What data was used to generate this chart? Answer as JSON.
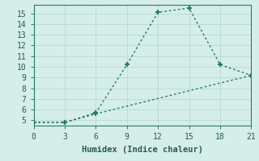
{
  "line1_x": [
    0,
    3,
    6,
    9,
    12,
    15,
    18,
    21
  ],
  "line1_y": [
    4.8,
    4.8,
    5.7,
    10.2,
    15.1,
    15.5,
    10.2,
    9.2
  ],
  "line2_x": [
    0,
    3,
    6,
    21
  ],
  "line2_y": [
    4.8,
    4.8,
    5.6,
    9.2
  ],
  "color": "#2a7a6a",
  "bg_color": "#d5eeea",
  "grid_color": "#b8ddd8",
  "xlabel": "Humidex (Indice chaleur)",
  "xlim": [
    0,
    21
  ],
  "ylim": [
    4.5,
    15.8
  ],
  "xticks": [
    0,
    3,
    6,
    9,
    12,
    15,
    18,
    21
  ],
  "yticks": [
    5,
    6,
    7,
    8,
    9,
    10,
    11,
    12,
    13,
    14,
    15
  ],
  "marker": "+",
  "markersize": 5,
  "markeredgewidth": 1.5,
  "linewidth": 1.0,
  "font_size": 7,
  "xlabel_fontsize": 7.5
}
